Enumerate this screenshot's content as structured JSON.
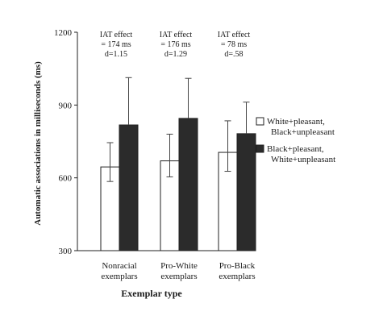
{
  "chart_data": {
    "type": "bar",
    "xlabel": "Exemplar type",
    "ylabel": "Automatic associations in milliseconds  (ms)",
    "ylim": [
      300,
      1200
    ],
    "yticks": [
      "300",
      "600",
      "900",
      "1200"
    ],
    "ytick_values": [
      300,
      600,
      900,
      1200
    ],
    "grid": false,
    "legend_position": "right",
    "categories": [
      [
        "Nonracial",
        "exemplars"
      ],
      [
        "Pro-White",
        "exemplars"
      ],
      [
        "Pro-Black",
        "exemplars"
      ]
    ],
    "series": [
      {
        "name_lines": [
          "White+pleasant,",
          "Black+unpleasant"
        ],
        "fill": "#ffffff",
        "values": [
          645,
          670,
          705
        ],
        "errors": [
          100,
          110,
          130
        ]
      },
      {
        "name_lines": [
          "Black+pleasant,",
          "White+unpleasant"
        ],
        "fill": "#2b2b2b",
        "values": [
          818,
          845,
          782
        ],
        "errors": [
          195,
          165,
          130
        ]
      }
    ],
    "annotations": [
      {
        "lines": [
          "IAT effect",
          "= 174 ms",
          "d=1.15"
        ]
      },
      {
        "lines": [
          "IAT effect",
          "= 176 ms",
          "d=1.29"
        ]
      },
      {
        "lines": [
          "IAT effect",
          "= 78 ms",
          "d=.58"
        ]
      }
    ]
  }
}
